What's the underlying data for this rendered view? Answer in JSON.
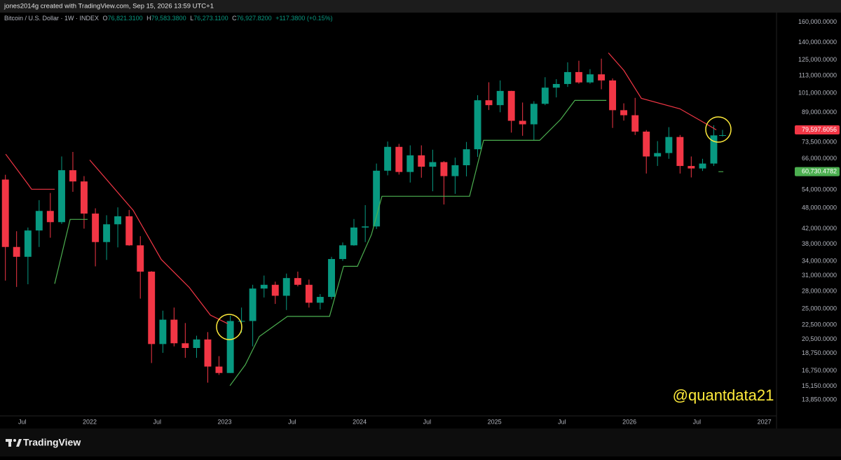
{
  "header": {
    "text": "jones2014g created with TradingView.com, Sep 15, 2026 13:59 UTC+1"
  },
  "chart_data": {
    "type": "candlestick",
    "legend": {
      "symbol": "Bitcoin / U.S. Dollar · 1W · INDEX",
      "items": [
        {
          "key": "O",
          "value": "76,821.3100"
        },
        {
          "key": "H",
          "value": "79,583.3800"
        },
        {
          "key": "L",
          "value": "76,273.1100"
        },
        {
          "key": "C",
          "value": "76,927.8200"
        }
      ],
      "change": "+117.3800 (+0.15%)"
    },
    "log_scale": true,
    "grid": false,
    "up_color": "#089981",
    "down_color": "#f23645",
    "xlim": [
      2021.335,
      2027.09
    ],
    "ylim": [
      12500,
      170000
    ],
    "xticks": [
      {
        "value": 2021.5,
        "label": "Jul"
      },
      2022,
      {
        "value": 2022.5,
        "label": "Jul"
      },
      2023,
      {
        "value": 2023.5,
        "label": "Jul"
      },
      2024,
      {
        "value": 2024.5,
        "label": "Jul"
      },
      2025,
      {
        "value": 2025.5,
        "label": "Jul"
      },
      2026,
      {
        "value": 2026.5,
        "label": "Jul"
      },
      2027
    ],
    "yticks": [
      {
        "value": 160000,
        "label": "160,000.0000"
      },
      {
        "value": 140000,
        "label": "140,000.0000"
      },
      {
        "value": 125000,
        "label": "125,000.0000"
      },
      {
        "value": 113000,
        "label": "113,000.0000"
      },
      {
        "value": 101000,
        "label": "101,000.0000"
      },
      {
        "value": 89000,
        "label": "89,000.0000"
      },
      {
        "value": 73500,
        "label": "73,500.0000"
      },
      {
        "value": 66000,
        "label": "66,000.0000"
      },
      {
        "value": 54000,
        "label": "54,000.0000"
      },
      {
        "value": 48000,
        "label": "48,000.0000"
      },
      {
        "value": 42000,
        "label": "42,000.0000"
      },
      {
        "value": 38000,
        "label": "38,000.0000"
      },
      {
        "value": 34000,
        "label": "34,000.0000"
      },
      {
        "value": 31000,
        "label": "31,000.0000"
      },
      {
        "value": 28000,
        "label": "28,000.0000"
      },
      {
        "value": 25000,
        "label": "25,000.0000"
      },
      {
        "value": 22500,
        "label": "22,500.0000"
      },
      {
        "value": 20500,
        "label": "20,500.0000"
      },
      {
        "value": 18750,
        "label": "18,750.0000"
      },
      {
        "value": 16750,
        "label": "16,750.0000"
      },
      {
        "value": 15150,
        "label": "15,150.0000"
      },
      {
        "value": 13850,
        "label": "13,850.0000"
      }
    ],
    "x": [
      2021.375,
      2021.458,
      2021.542,
      2021.625,
      2021.708,
      2021.792,
      2021.875,
      2021.958,
      2022.042,
      2022.125,
      2022.208,
      2022.292,
      2022.375,
      2022.458,
      2022.542,
      2022.625,
      2022.708,
      2022.792,
      2022.875,
      2022.958,
      2023.042,
      2023.125,
      2023.208,
      2023.292,
      2023.375,
      2023.458,
      2023.542,
      2023.625,
      2023.708,
      2023.792,
      2023.875,
      2023.958,
      2024.042,
      2024.125,
      2024.208,
      2024.292,
      2024.375,
      2024.458,
      2024.542,
      2024.625,
      2024.708,
      2024.792,
      2024.875,
      2024.958,
      2025.042,
      2025.125,
      2025.208,
      2025.292,
      2025.375,
      2025.458,
      2025.542,
      2025.625,
      2025.708,
      2025.792,
      2025.875,
      2025.958,
      2026.042,
      2026.125,
      2026.208,
      2026.292,
      2026.375,
      2026.458,
      2026.542,
      2026.625,
      2026.69
    ],
    "open": [
      57700,
      37300,
      35000,
      41500,
      47100,
      43800,
      61300,
      57000,
      46300,
      38500,
      43200,
      45500,
      37700,
      31800,
      19900,
      23300,
      20000,
      19400,
      20500,
      17200,
      16500,
      23100,
      23100,
      28500,
      29200,
      27200,
      30500,
      29200,
      26000,
      27000,
      34500,
      37700,
      42300,
      42600,
      61100,
      71300,
      60600,
      67500,
      62700,
      64600,
      59000,
      63300,
      70200,
      96400,
      93400,
      102400,
      84400,
      82500,
      94200,
      104600,
      107100,
      115700,
      108200,
      114000,
      109600,
      90400,
      87500,
      78700,
      67000,
      68500,
      76000,
      63000,
      62000,
      64000,
      76821.31
    ],
    "high": [
      59500,
      41300,
      42300,
      50500,
      52900,
      67000,
      69000,
      59000,
      47900,
      45800,
      48200,
      47400,
      40000,
      31900,
      24700,
      25200,
      22800,
      21000,
      21500,
      18400,
      23900,
      25200,
      29200,
      31000,
      29800,
      31400,
      31800,
      30200,
      27500,
      35000,
      38400,
      44700,
      48900,
      64000,
      73800,
      72700,
      72000,
      72000,
      70000,
      65000,
      66500,
      73600,
      99600,
      108300,
      109600,
      102500,
      95000,
      95800,
      111900,
      110500,
      123200,
      124500,
      117900,
      126200,
      111000,
      94500,
      97900,
      79500,
      74000,
      81000,
      77000,
      67000,
      66000,
      82000,
      79583.38
    ],
    "low": [
      30000,
      28800,
      29300,
      37300,
      39600,
      43300,
      53300,
      42000,
      32900,
      34300,
      37200,
      37600,
      26700,
      17600,
      18800,
      19600,
      18200,
      18200,
      15500,
      16300,
      16500,
      21400,
      19600,
      26900,
      25800,
      24800,
      28900,
      25200,
      24900,
      26600,
      34100,
      37600,
      38500,
      41900,
      59300,
      59600,
      56600,
      58400,
      53500,
      49100,
      52600,
      58900,
      66800,
      90500,
      89200,
      78200,
      76600,
      74400,
      93400,
      98200,
      105100,
      107300,
      107300,
      103500,
      80600,
      84500,
      77000,
      60000,
      63000,
      66000,
      60000,
      58500,
      61000,
      63000,
      76273.11
    ],
    "close": [
      37300,
      35000,
      41500,
      47100,
      43800,
      61300,
      57000,
      46300,
      38500,
      43200,
      45500,
      37700,
      31800,
      19900,
      23300,
      20000,
      19400,
      20500,
      17200,
      16500,
      23100,
      23100,
      28500,
      29200,
      27200,
      30500,
      29200,
      26000,
      27000,
      34500,
      37700,
      42300,
      42600,
      61100,
      71300,
      60600,
      67500,
      62700,
      64600,
      59000,
      63300,
      70200,
      96400,
      93400,
      102400,
      84400,
      82500,
      94200,
      104600,
      107100,
      115700,
      108200,
      114000,
      109600,
      90400,
      87500,
      78700,
      67000,
      68500,
      76000,
      63000,
      62000,
      64000,
      76800,
      76927.82
    ],
    "supertrend": {
      "upper": {
        "color": "#f23645",
        "x": [
          2021.377,
          2021.543,
          2021.569,
          2021.74,
          null,
          2022.0,
          2022.322,
          2022.53,
          2022.738,
          2022.894,
          2023.023,
          null,
          2025.844,
          2025.958,
          2026.088,
          2026.374,
          2026.582,
          2026.644
        ],
        "values": [
          68000,
          56000,
          54200,
          54200,
          null,
          65500,
          47300,
          34400,
          28700,
          24000,
          22700,
          null,
          131000,
          117000,
          97600,
          91200,
          82200,
          79597.6056
        ]
      },
      "lower": {
        "color": "#4caf50",
        "x": [
          2021.74,
          2021.855,
          2021.984,
          null,
          2023.039,
          2023.153,
          2023.257,
          2023.465,
          2023.777,
          2023.881,
          2023.984,
          2024.088,
          2024.166,
          2024.815,
          2024.919,
          2025.335,
          2025.491,
          2025.595,
          2025.829,
          null,
          2026.66,
          2026.696
        ],
        "values": [
          29400,
          44600,
          44600,
          null,
          15200,
          17400,
          20900,
          23800,
          23800,
          32900,
          32900,
          40400,
          51800,
          51800,
          74400,
          74400,
          85200,
          96300,
          96300,
          null,
          60730.4782,
          60730.4782
        ]
      }
    },
    "price_labels": [
      {
        "value": 79597.6056,
        "label": "79,597.6056",
        "color": "#f23645"
      },
      {
        "value": 60730.4782,
        "label": "60,730.4782",
        "color": "#4caf50"
      }
    ],
    "watermark": "@quantdata21"
  },
  "footer": {
    "brand": "TradingView"
  }
}
